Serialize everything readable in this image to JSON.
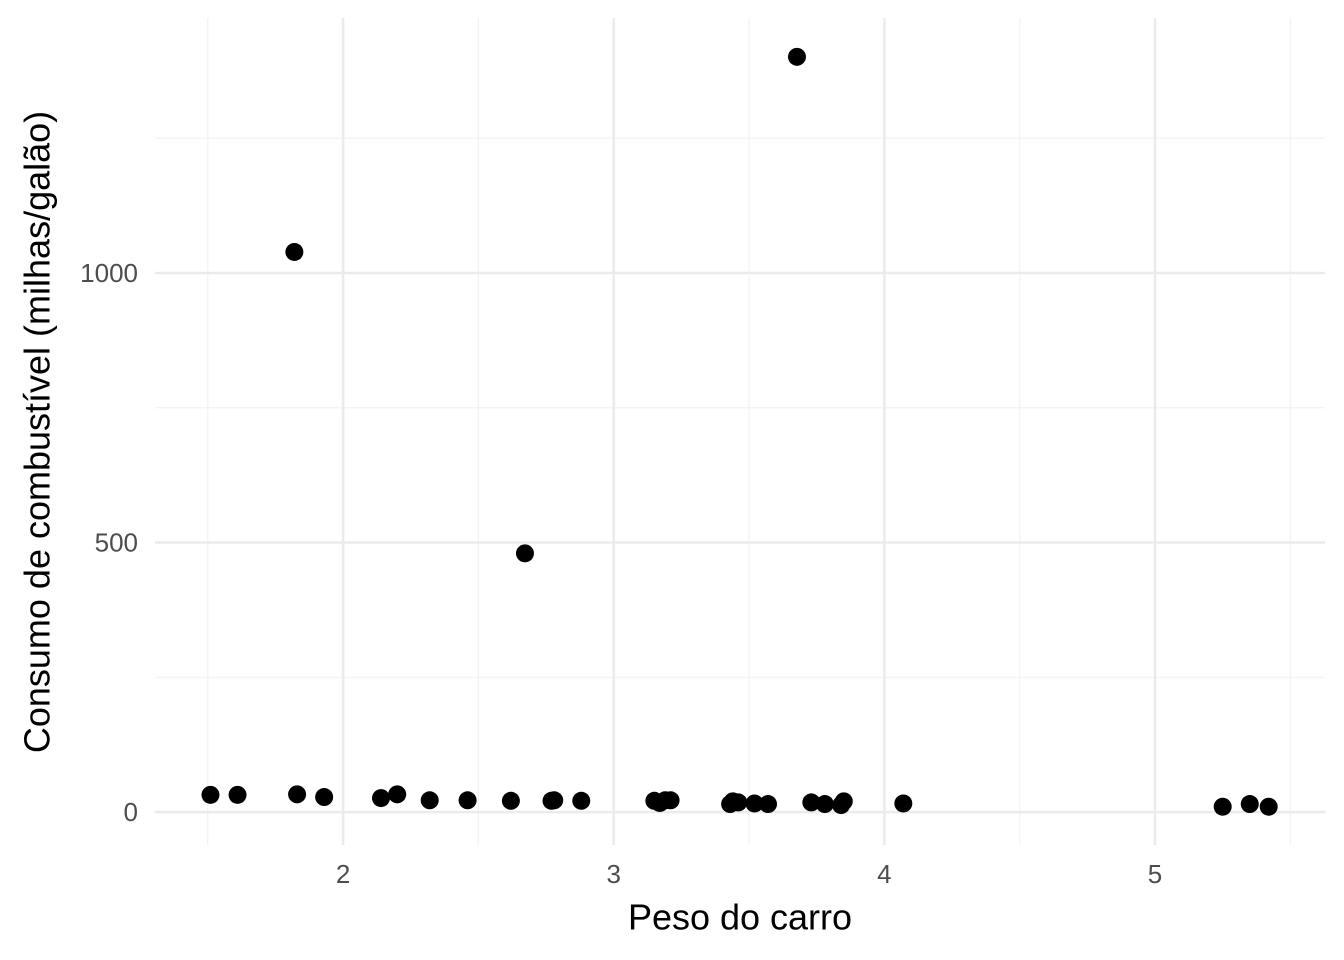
{
  "chart_data": {
    "type": "scatter",
    "x_label": "Peso do carro",
    "y_label": "Consumo de combustível (milhas/galão)",
    "x": [
      1.51,
      1.61,
      1.83,
      1.82,
      1.93,
      2.14,
      2.2,
      2.32,
      2.46,
      2.62,
      2.672,
      2.77,
      2.78,
      2.88,
      3.15,
      3.17,
      3.19,
      3.21,
      3.43,
      3.44,
      3.46,
      3.52,
      3.57,
      3.677,
      3.73,
      3.78,
      3.84,
      3.85,
      4.07,
      5.25,
      5.35,
      5.42
    ],
    "values": [
      32,
      32,
      33,
      1039,
      28,
      26,
      33,
      22,
      22,
      21,
      480,
      21,
      22,
      21,
      21,
      17,
      22,
      22,
      15,
      20,
      18,
      16,
      15,
      1401,
      18,
      15,
      13,
      20,
      16,
      10,
      15,
      10
    ],
    "color": "#000000",
    "xlim": [
      1.305,
      5.628
    ],
    "ylim": [
      -61,
      1473
    ],
    "xticks": [
      2,
      3,
      4,
      5
    ],
    "yticks": [
      0,
      500,
      1000
    ],
    "x_minor_grid": [
      1.5,
      2.5,
      3.5,
      4.5,
      5.5
    ],
    "y_minor_grid": [
      250,
      750,
      1250
    ],
    "grid": true
  }
}
